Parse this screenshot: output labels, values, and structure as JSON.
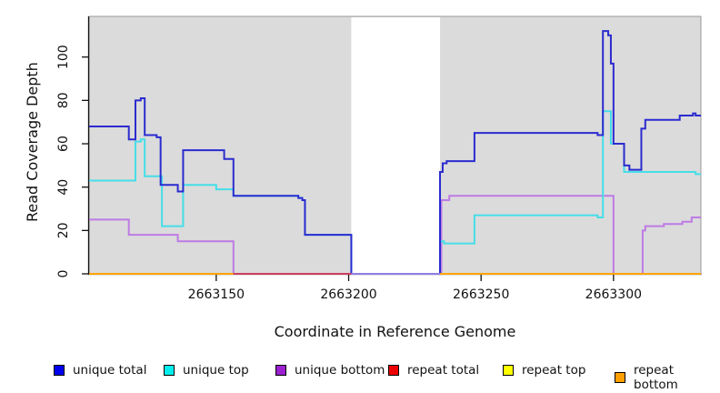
{
  "chart_data": {
    "type": "line",
    "subtype": "step-coverage",
    "title": "",
    "xlabel": "Coordinate in Reference Genome",
    "ylabel": "Read Coverage Depth",
    "xlim": [
      2663102,
      2663333
    ],
    "ylim": [
      0,
      118
    ],
    "x_ticks": [
      2663150,
      2663200,
      2663250,
      2663300
    ],
    "y_ticks": [
      0,
      20,
      40,
      60,
      80,
      100
    ],
    "grid": false,
    "legend_position": "bottom",
    "background_color": "#DBDBDB",
    "border_color": "#999999",
    "axis_color": "#111111",
    "gap_region": {
      "from": 2663201,
      "to": 2663234.5,
      "color": "#FFFFFF"
    },
    "baseline_segments": [
      {
        "from": 2663102,
        "to": 2663156.5,
        "color": "#FFA500"
      },
      {
        "from": 2663156.5,
        "to": 2663201,
        "color": "#CC4060"
      },
      {
        "from": 2663201,
        "to": 2663234.5,
        "color": "#8F7FE6"
      },
      {
        "from": 2663234.5,
        "to": 2663333,
        "color": "#FFA500"
      }
    ],
    "series": [
      {
        "name": "unique total",
        "color": "#2B2BD0",
        "steps": [
          [
            2663102,
            68
          ],
          [
            2663117,
            62
          ],
          [
            2663119.5,
            80
          ],
          [
            2663121.5,
            81
          ],
          [
            2663123,
            64
          ],
          [
            2663127.5,
            63
          ],
          [
            2663129,
            41
          ],
          [
            2663135.5,
            38
          ],
          [
            2663137.5,
            57
          ],
          [
            2663153,
            53
          ],
          [
            2663156.5,
            36
          ],
          [
            2663181,
            35
          ],
          [
            2663182.5,
            34
          ],
          [
            2663183.5,
            18
          ],
          [
            2663201,
            0
          ],
          [
            2663234.5,
            47
          ],
          [
            2663235.5,
            51
          ],
          [
            2663237,
            52
          ],
          [
            2663247.5,
            65
          ],
          [
            2663294,
            64
          ],
          [
            2663296,
            112
          ],
          [
            2663298,
            110
          ],
          [
            2663299,
            97
          ],
          [
            2663300,
            60
          ],
          [
            2663304,
            50
          ],
          [
            2663306,
            48
          ],
          [
            2663310.5,
            67
          ],
          [
            2663312,
            71
          ],
          [
            2663325,
            73
          ],
          [
            2663330,
            74
          ],
          [
            2663331,
            73
          ]
        ]
      },
      {
        "name": "unique top",
        "color": "#45DEE8",
        "steps": [
          [
            2663102,
            43
          ],
          [
            2663119.5,
            61
          ],
          [
            2663121.5,
            62
          ],
          [
            2663123,
            45
          ],
          [
            2663129.5,
            22
          ],
          [
            2663137.5,
            41
          ],
          [
            2663150,
            39
          ],
          [
            2663156.5,
            36
          ],
          [
            2663181,
            35
          ],
          [
            2663182.5,
            34
          ],
          [
            2663183.5,
            18
          ],
          [
            2663201,
            0
          ],
          [
            2663234.5,
            15
          ],
          [
            2663236,
            14
          ],
          [
            2663247.5,
            27
          ],
          [
            2663294,
            26
          ],
          [
            2663296,
            75
          ],
          [
            2663299,
            60
          ],
          [
            2663304,
            47
          ],
          [
            2663331,
            46
          ]
        ]
      },
      {
        "name": "unique bottom",
        "color": "#BD7BE4",
        "steps": [
          [
            2663102,
            25
          ],
          [
            2663117,
            18
          ],
          [
            2663135.5,
            15
          ],
          [
            2663156.5,
            0
          ],
          [
            2663235,
            34
          ],
          [
            2663238,
            36
          ],
          [
            2663300,
            0
          ],
          [
            2663311,
            20
          ],
          [
            2663312,
            22
          ],
          [
            2663319,
            23
          ],
          [
            2663326,
            24
          ],
          [
            2663329.5,
            26
          ]
        ]
      },
      {
        "name": "repeat total",
        "color": "#EE0000",
        "steps": [
          [
            2663102,
            0
          ]
        ]
      },
      {
        "name": "repeat top",
        "color": "#FFFF00",
        "steps": [
          [
            2663102,
            0
          ]
        ]
      },
      {
        "name": "repeat bottom",
        "color": "#FFA500",
        "steps": [
          [
            2663102,
            0
          ]
        ]
      }
    ],
    "legend": [
      {
        "label": "unique total",
        "color": "#0000EE"
      },
      {
        "label": "unique top",
        "color": "#00EEEE"
      },
      {
        "label": "unique bottom",
        "color": "#9A20D0"
      },
      {
        "label": "repeat total",
        "color": "#EE0000"
      },
      {
        "label": "repeat top",
        "color": "#FFFF00"
      },
      {
        "label": "repeat bottom",
        "color": "#FFA000"
      }
    ]
  }
}
